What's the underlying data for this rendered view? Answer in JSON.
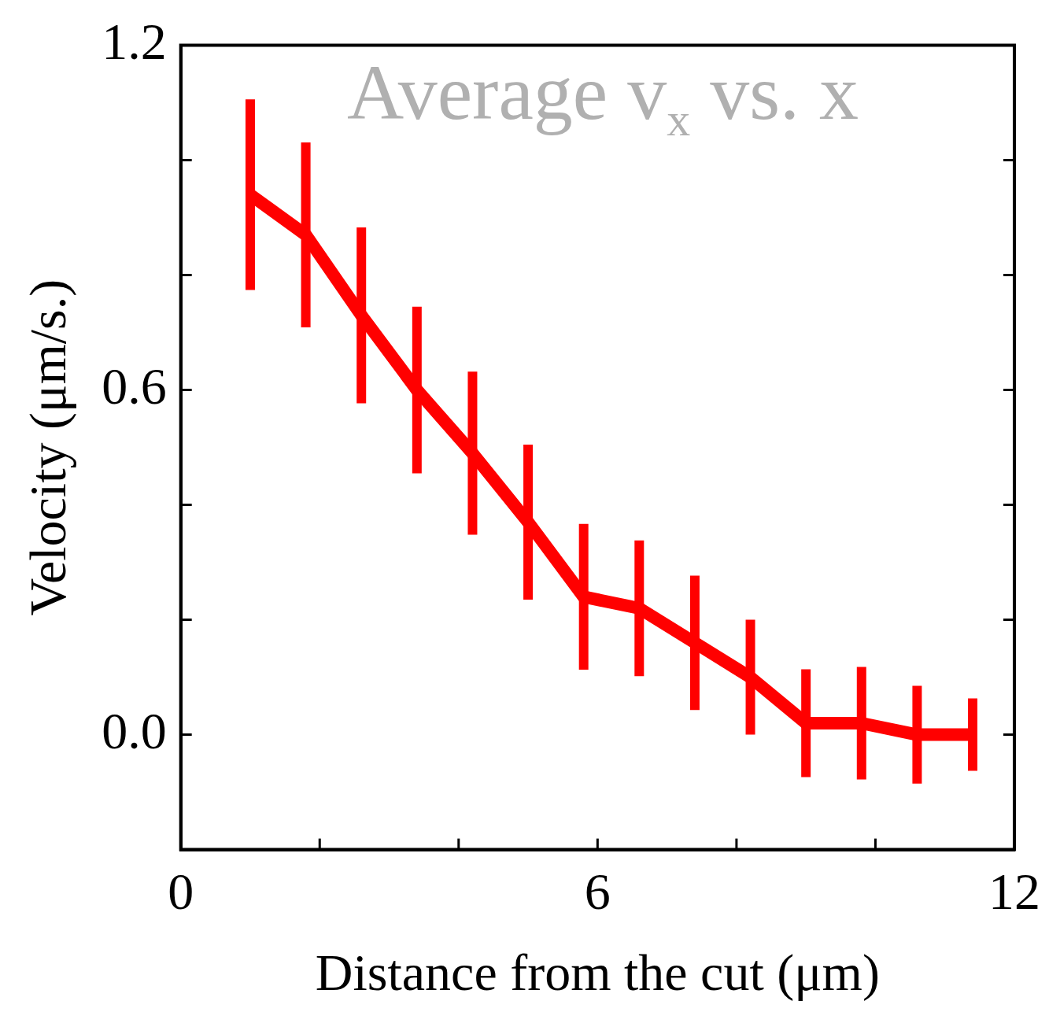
{
  "chart_data": {
    "type": "line",
    "title": "Average v$_{x}$ vs. x",
    "xlabel": "Distance from the cut (μm)",
    "ylabel": "Velocity (μm/s.)",
    "x": [
      1.0,
      1.8,
      2.6,
      3.4,
      4.2,
      5.0,
      5.8,
      6.6,
      7.4,
      8.2,
      9.0,
      9.8,
      10.6,
      11.4
    ],
    "series": [
      {
        "color": "#ff0000",
        "values": [
          0.94,
          0.87,
          0.73,
          0.6,
          0.49,
          0.37,
          0.24,
          0.22,
          0.16,
          0.1,
          0.02,
          0.02,
          0.0,
          0.0
        ],
        "errors": [
          0.166,
          0.161,
          0.153,
          0.145,
          0.142,
          0.135,
          0.127,
          0.118,
          0.117,
          0.1,
          0.094,
          0.098,
          0.085,
          0.063
        ]
      }
    ],
    "xlim": [
      0,
      12
    ],
    "ylim": [
      -0.2,
      1.2
    ],
    "xticks": [
      0,
      {
        "value": 2,
        "label": null
      },
      {
        "value": 4,
        "label": null
      },
      6,
      {
        "value": 8,
        "label": null
      },
      {
        "value": 10,
        "label": null
      },
      12
    ],
    "yticks": [
      {
        "value": 0,
        "label": "0.0"
      },
      {
        "value": 0.2,
        "label": null
      },
      {
        "value": 0.4,
        "label": null
      },
      0.6,
      {
        "value": 0.8,
        "label": null
      },
      {
        "value": 1.0,
        "label": null
      },
      1.2
    ],
    "grid": false,
    "legend": false,
    "marker": "none",
    "line_style": "solid"
  }
}
